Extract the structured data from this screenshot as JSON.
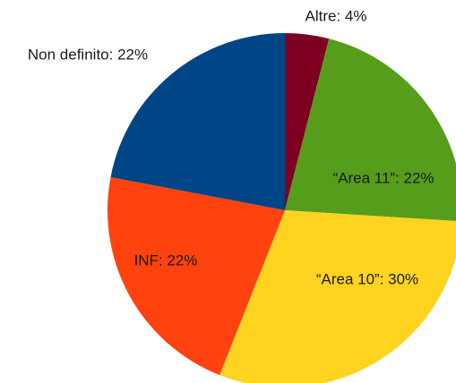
{
  "chart_data": {
    "type": "pie",
    "values": [
      4,
      22,
      30,
      22,
      22
    ],
    "value_labels": [
      "Altre: 4%",
      "“Area 11”: 22%",
      "“Area 10”: 30%",
      "INF: 22%",
      "Non definito: 22%"
    ],
    "colors": [
      "#7e0021",
      "#579d1c",
      "#ffd320",
      "#ff420e",
      "#004586"
    ]
  }
}
